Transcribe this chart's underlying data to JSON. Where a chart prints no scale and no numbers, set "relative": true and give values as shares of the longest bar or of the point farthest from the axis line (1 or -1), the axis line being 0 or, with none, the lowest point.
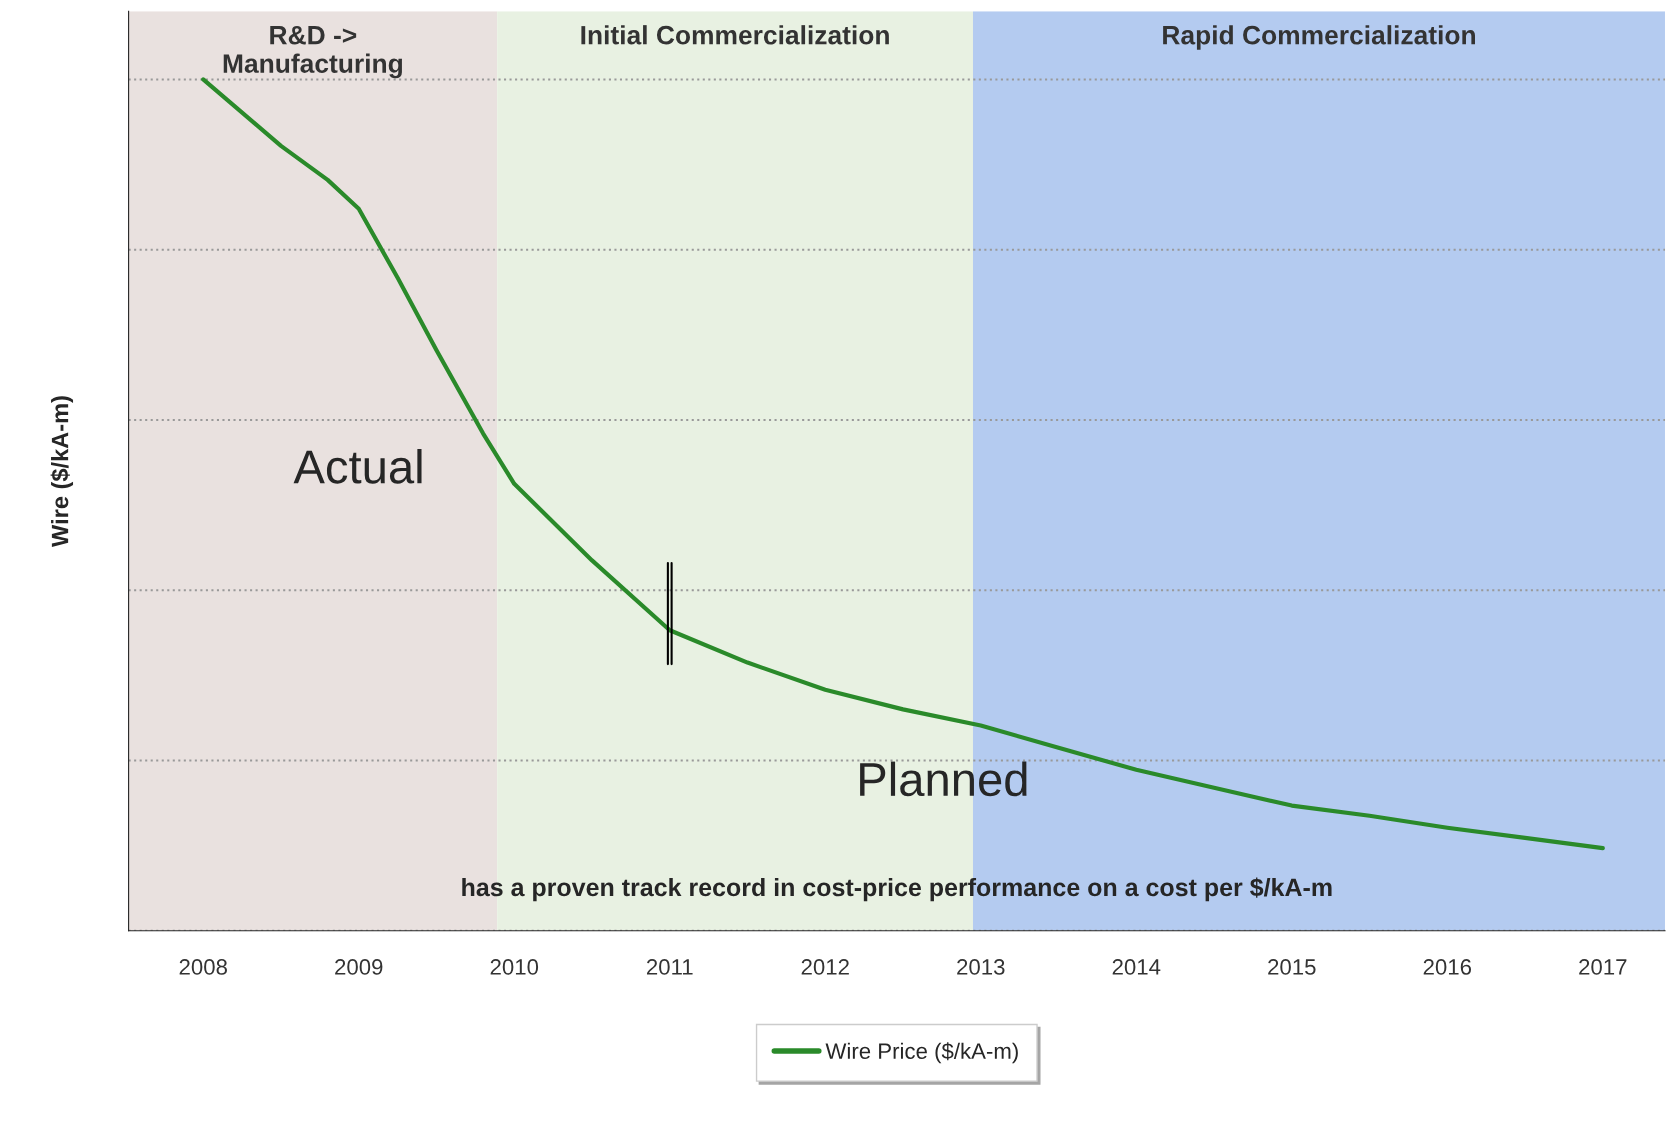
{
  "chart_data": {
    "type": "line",
    "relative": true,
    "ylabel": "Wire ($/kA-m)",
    "x": [
      2008,
      2008.5,
      2008.8,
      2009,
      2009.25,
      2009.5,
      2009.8,
      2010,
      2010.5,
      2011,
      2011.5,
      2012,
      2012.5,
      2013,
      2013.5,
      2014,
      2014.5,
      2015,
      2015.5,
      2016,
      2016.5,
      2017
    ],
    "series": [
      {
        "name": "Wire Price ($/kA-m)",
        "color": "#2a8a2a",
        "values": [
          1,
          0.922,
          0.882,
          0.848,
          0.767,
          0.682,
          0.584,
          0.525,
          0.435,
          0.353,
          0.315,
          0.283,
          0.26,
          0.241,
          0.215,
          0.189,
          0.168,
          0.147,
          0.135,
          0.121,
          0.109,
          0.097
        ]
      }
    ],
    "xlim": [
      2007.52,
      2017.4
    ],
    "xticks": [
      2008,
      2009,
      2010,
      2011,
      2012,
      2013,
      2014,
      2015,
      2016,
      2017
    ],
    "bands": [
      {
        "axis": "x",
        "from": 2007.52,
        "to": 2009.89,
        "label": "R&D ->\nManufacturing",
        "color": "#e9e1df"
      },
      {
        "axis": "x",
        "from": 2009.89,
        "to": 2012.95,
        "label": "Initial Commercialization",
        "color": "#e8f1e2"
      },
      {
        "axis": "x",
        "from": 2012.95,
        "to": 2017.4,
        "label": "Rapid Commercialization",
        "color": "#b4cbf0"
      }
    ],
    "annotations": [
      "Actual",
      "Planned",
      "has a proven track record in cost-price performance on a cost per $/kA-m"
    ],
    "grid": "y",
    "legend": "bottom",
    "line_style": "solid",
    "marker": "none"
  }
}
